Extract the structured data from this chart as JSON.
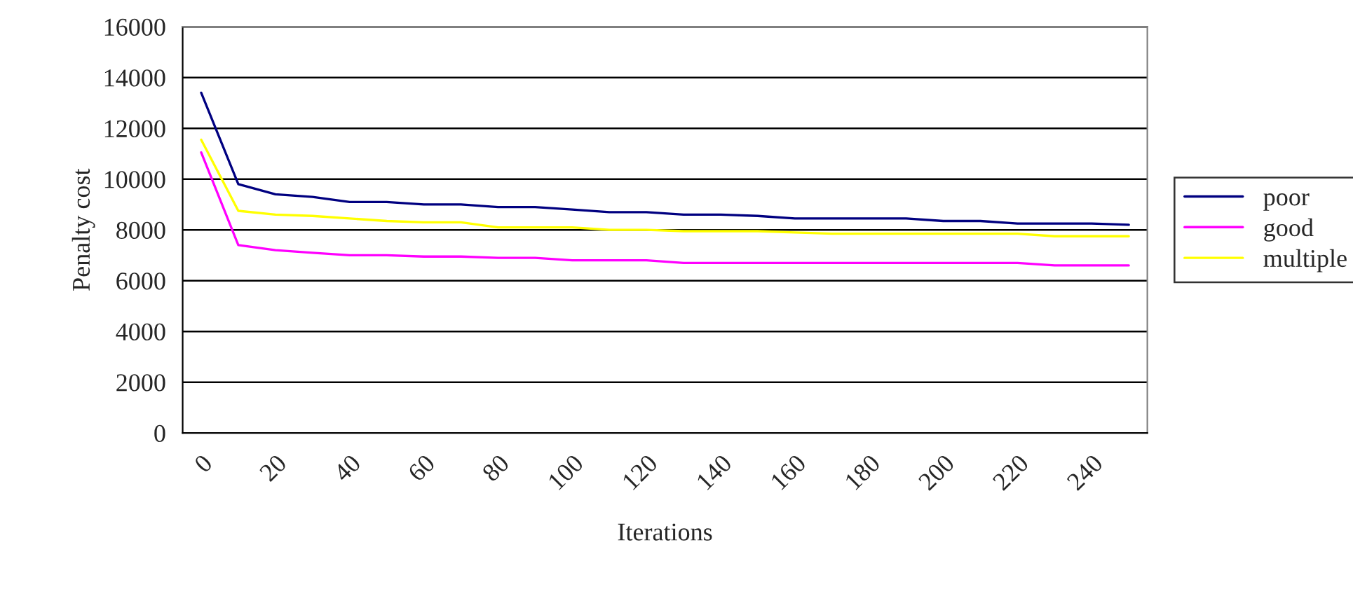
{
  "chart_data": {
    "type": "line",
    "xlabel": "Iterations",
    "ylabel": "Penalty cost",
    "categories": [
      "0",
      null,
      "20",
      null,
      "40",
      null,
      "60",
      null,
      "80",
      null,
      "100",
      null,
      "120",
      null,
      "140",
      null,
      "160",
      null,
      "180",
      null,
      "200",
      null,
      "220",
      null,
      "240",
      null
    ],
    "series": [
      {
        "name": "poor",
        "color": "#000080",
        "values": [
          13400,
          9800,
          9400,
          9300,
          9100,
          9100,
          9000,
          9000,
          8900,
          8900,
          8800,
          8700,
          8700,
          8600,
          8600,
          8550,
          8450,
          8450,
          8450,
          8450,
          8350,
          8350,
          8250,
          8250,
          8250,
          8200
        ]
      },
      {
        "name": "good",
        "color": "#ff00ff",
        "values": [
          11050,
          7400,
          7200,
          7100,
          7000,
          7000,
          6950,
          6950,
          6900,
          6900,
          6800,
          6800,
          6800,
          6700,
          6700,
          6700,
          6700,
          6700,
          6700,
          6700,
          6700,
          6700,
          6700,
          6600,
          6600,
          6600
        ]
      },
      {
        "name": "multiple",
        "color": "#ffff00",
        "values": [
          11550,
          8750,
          8600,
          8550,
          8450,
          8350,
          8300,
          8300,
          8100,
          8100,
          8100,
          8000,
          8000,
          7950,
          7950,
          7950,
          7900,
          7850,
          7850,
          7850,
          7850,
          7850,
          7850,
          7750,
          7750,
          7750
        ]
      }
    ],
    "ylim": [
      0,
      16000
    ],
    "yticks": [
      0,
      2000,
      4000,
      6000,
      8000,
      10000,
      12000,
      14000,
      16000
    ],
    "grid": "y",
    "legend": "right",
    "marker": "none",
    "line_style": "solid"
  }
}
